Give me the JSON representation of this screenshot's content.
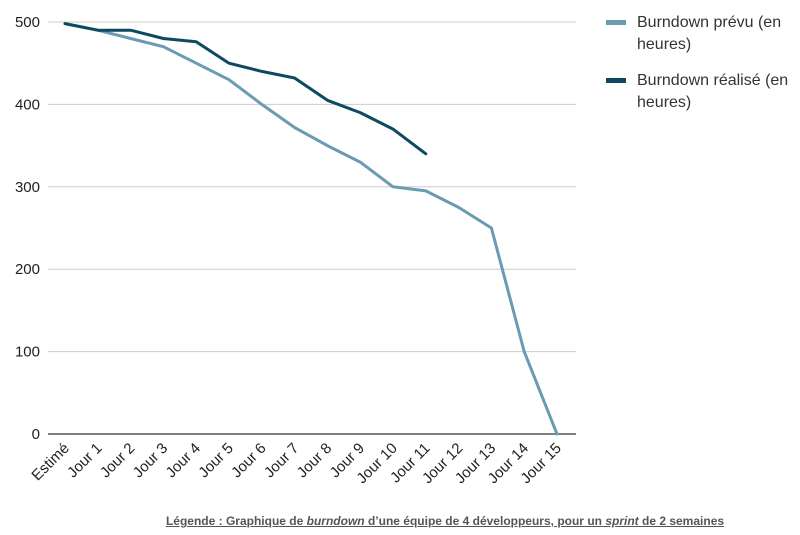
{
  "chart_data": {
    "type": "line",
    "categories": [
      "Estimé",
      "Jour 1",
      "Jour 2",
      "Jour 3",
      "Jour 4",
      "Jour 5",
      "Jour 6",
      "Jour 7",
      "Jour 8",
      "Jour 9",
      "Jour 10",
      "Jour 11",
      "Jour 12",
      "Jour 13",
      "Jour 14",
      "Jour 15"
    ],
    "series": [
      {
        "name": "Burndown prévu (en heures)",
        "color": "#6A9BB2",
        "values": [
          498,
          490,
          480,
          470,
          450,
          430,
          400,
          372,
          350,
          330,
          300,
          295,
          275,
          250,
          100,
          0
        ]
      },
      {
        "name": "Burndown réalisé (en heures)",
        "color": "#0C4A62",
        "values": [
          498,
          490,
          490,
          480,
          476,
          450,
          440,
          432,
          405,
          390,
          370,
          340,
          null,
          null,
          null,
          null
        ]
      }
    ],
    "y_ticks": [
      0,
      100,
      200,
      300,
      400,
      500
    ],
    "ylim": [
      0,
      500
    ],
    "grid": true,
    "legend_position": "right"
  },
  "caption": {
    "part1": "Légende : Graphique de ",
    "em1": "burndown",
    "part2": " d’une équipe de 4 développeurs, pour un ",
    "em2": "sprint",
    "part3": " de 2 semaines"
  }
}
